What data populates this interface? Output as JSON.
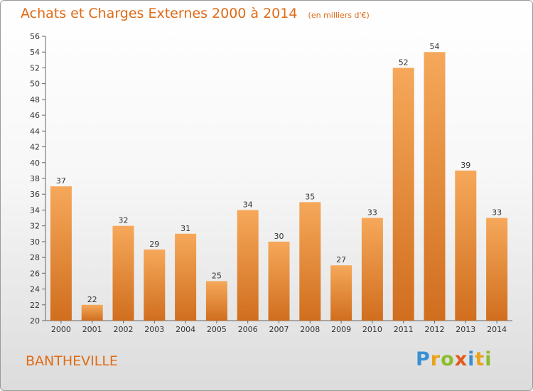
{
  "header": {
    "title": "Achats et Charges Externes 2000 à 2014",
    "unit": "(en milliers d'€)"
  },
  "commune": "BANTHEVILLE",
  "logo": {
    "text": "Proxiti",
    "letters": [
      {
        "ch": "P",
        "color": "#3a8fd3"
      },
      {
        "ch": "r",
        "color": "#e9a21a"
      },
      {
        "ch": "o",
        "color": "#8bbd2c"
      },
      {
        "ch": "x",
        "color": "#e25a1c"
      },
      {
        "ch": "i",
        "color": "#3a8fd3"
      },
      {
        "ch": "t",
        "color": "#e9a21a"
      },
      {
        "ch": "i",
        "color": "#8bbd2c"
      }
    ]
  },
  "colors": {
    "accent": "#e06a14",
    "bar_light": "#f6a85a",
    "bar_dark": "#d06e1e"
  },
  "chart_data": {
    "type": "bar",
    "categories": [
      "2000",
      "2001",
      "2002",
      "2003",
      "2004",
      "2005",
      "2006",
      "2007",
      "2008",
      "2009",
      "2010",
      "2011",
      "2012",
      "2013",
      "2014"
    ],
    "values": [
      37,
      22,
      32,
      29,
      31,
      25,
      34,
      30,
      35,
      27,
      33,
      52,
      54,
      39,
      33
    ],
    "ylim": [
      20,
      56
    ],
    "ytick_step": 2,
    "grid": false,
    "data_labels": true
  }
}
